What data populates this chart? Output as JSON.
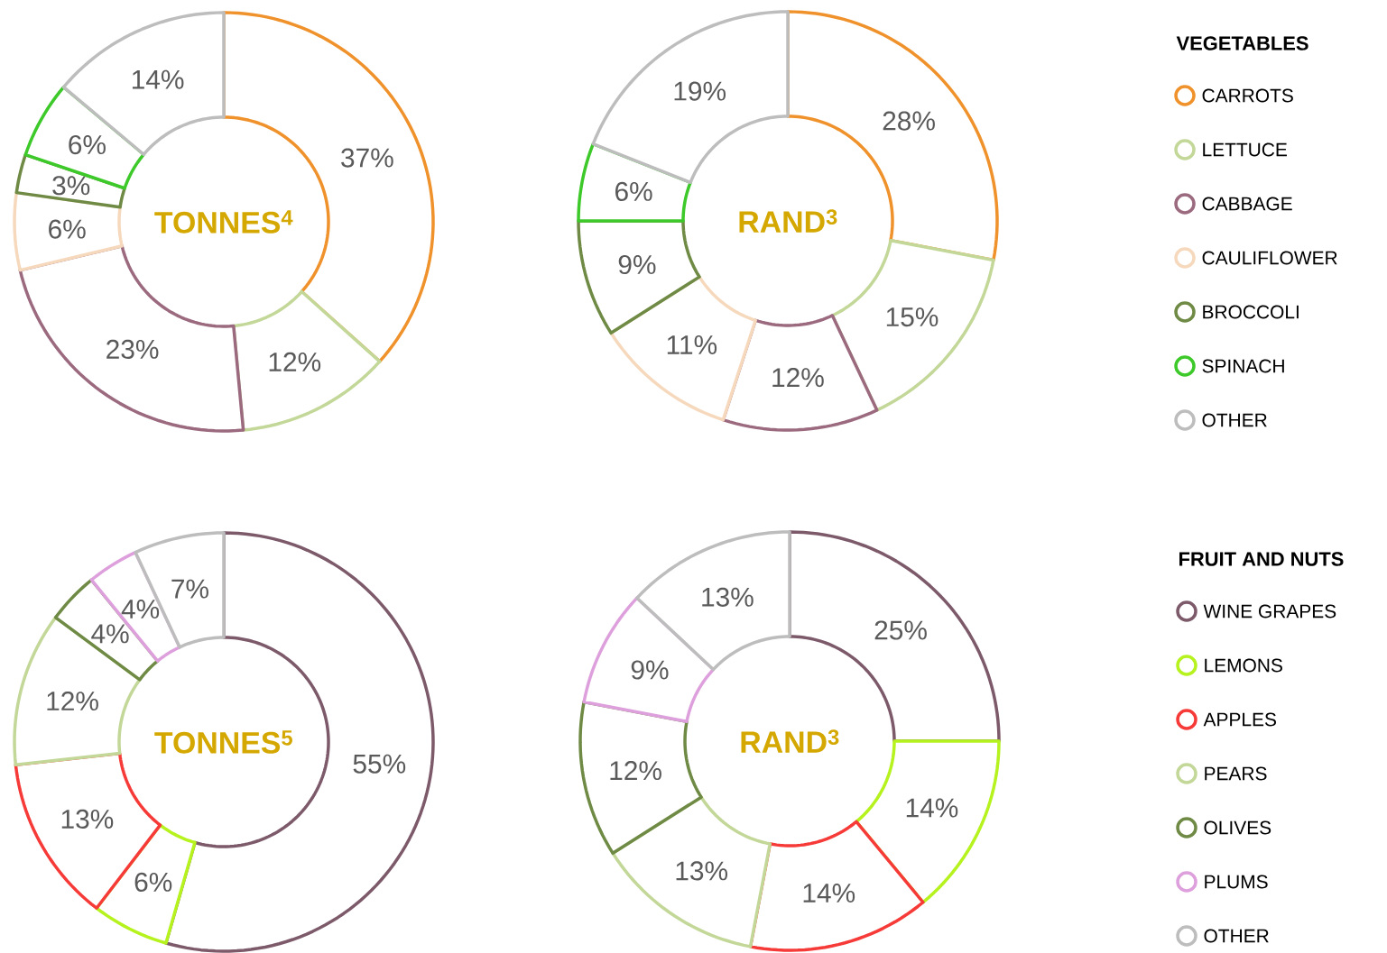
{
  "chart_data": [
    {
      "type": "donut",
      "title": "TONNES$^{4}$",
      "categories": [
        null,
        null,
        null,
        null,
        null,
        null,
        null
      ],
      "values": [
        37,
        12,
        23,
        6,
        3,
        6,
        14
      ],
      "value_labels": [
        "37%",
        "12%",
        "23%",
        "6%",
        "3%",
        "6%",
        "14%"
      ],
      "colors": [
        "#f0922c",
        "#c3d898",
        "#9b6a7e",
        "#f6d9bd",
        "#6f8a44",
        "#3ec92a",
        "#bdbdbd"
      ]
    },
    {
      "type": "donut",
      "title": "RAND$^{3}$",
      "legend_title": "VEGETABLES",
      "legend": "right",
      "categories": [
        "CARROTS",
        "LETTUCE",
        "CABBAGE",
        "CAULIFLOWER",
        "BROCCOLI",
        "SPINACH",
        "OTHER"
      ],
      "values": [
        28,
        15,
        12,
        11,
        9,
        6,
        19
      ],
      "value_labels": [
        "28%",
        "15%",
        "12%",
        "11%",
        "9%",
        "6%",
        "19%"
      ],
      "colors": [
        "#f0922c",
        "#c3d898",
        "#9b6a7e",
        "#f6d9bd",
        "#6f8a44",
        "#3ec92a",
        "#bdbdbd"
      ]
    },
    {
      "type": "donut",
      "title": "TONNES$^{5}$",
      "categories": [
        null,
        null,
        null,
        null,
        null,
        null,
        null
      ],
      "values": [
        55,
        6,
        13,
        12,
        4,
        4,
        7
      ],
      "value_labels": [
        "55%",
        "6%",
        "13%",
        "12%",
        "4%",
        "4%",
        "7%"
      ],
      "colors": [
        "#7d5a6a",
        "#b5f21e",
        "#f63a38",
        "#c3d898",
        "#6f8a44",
        "#dda0dc",
        "#bdbdbd"
      ]
    },
    {
      "type": "donut",
      "title": "RAND$^{3}$",
      "legend_title": "FRUIT AND NUTS",
      "legend": "right",
      "categories": [
        "WINE GRAPES",
        "LEMONS",
        "APPLES",
        "PEARS",
        "OLIVES",
        "PLUMS",
        "OTHER"
      ],
      "values": [
        25,
        14,
        14,
        13,
        12,
        9,
        13
      ],
      "value_labels": [
        "25%",
        "14%",
        "14%",
        "13%",
        "12%",
        "9%",
        "13%"
      ],
      "colors": [
        "#7d5a6a",
        "#b5f21e",
        "#f63a38",
        "#c3d898",
        "#6f8a44",
        "#dda0dc",
        "#bdbdbd"
      ]
    }
  ]
}
